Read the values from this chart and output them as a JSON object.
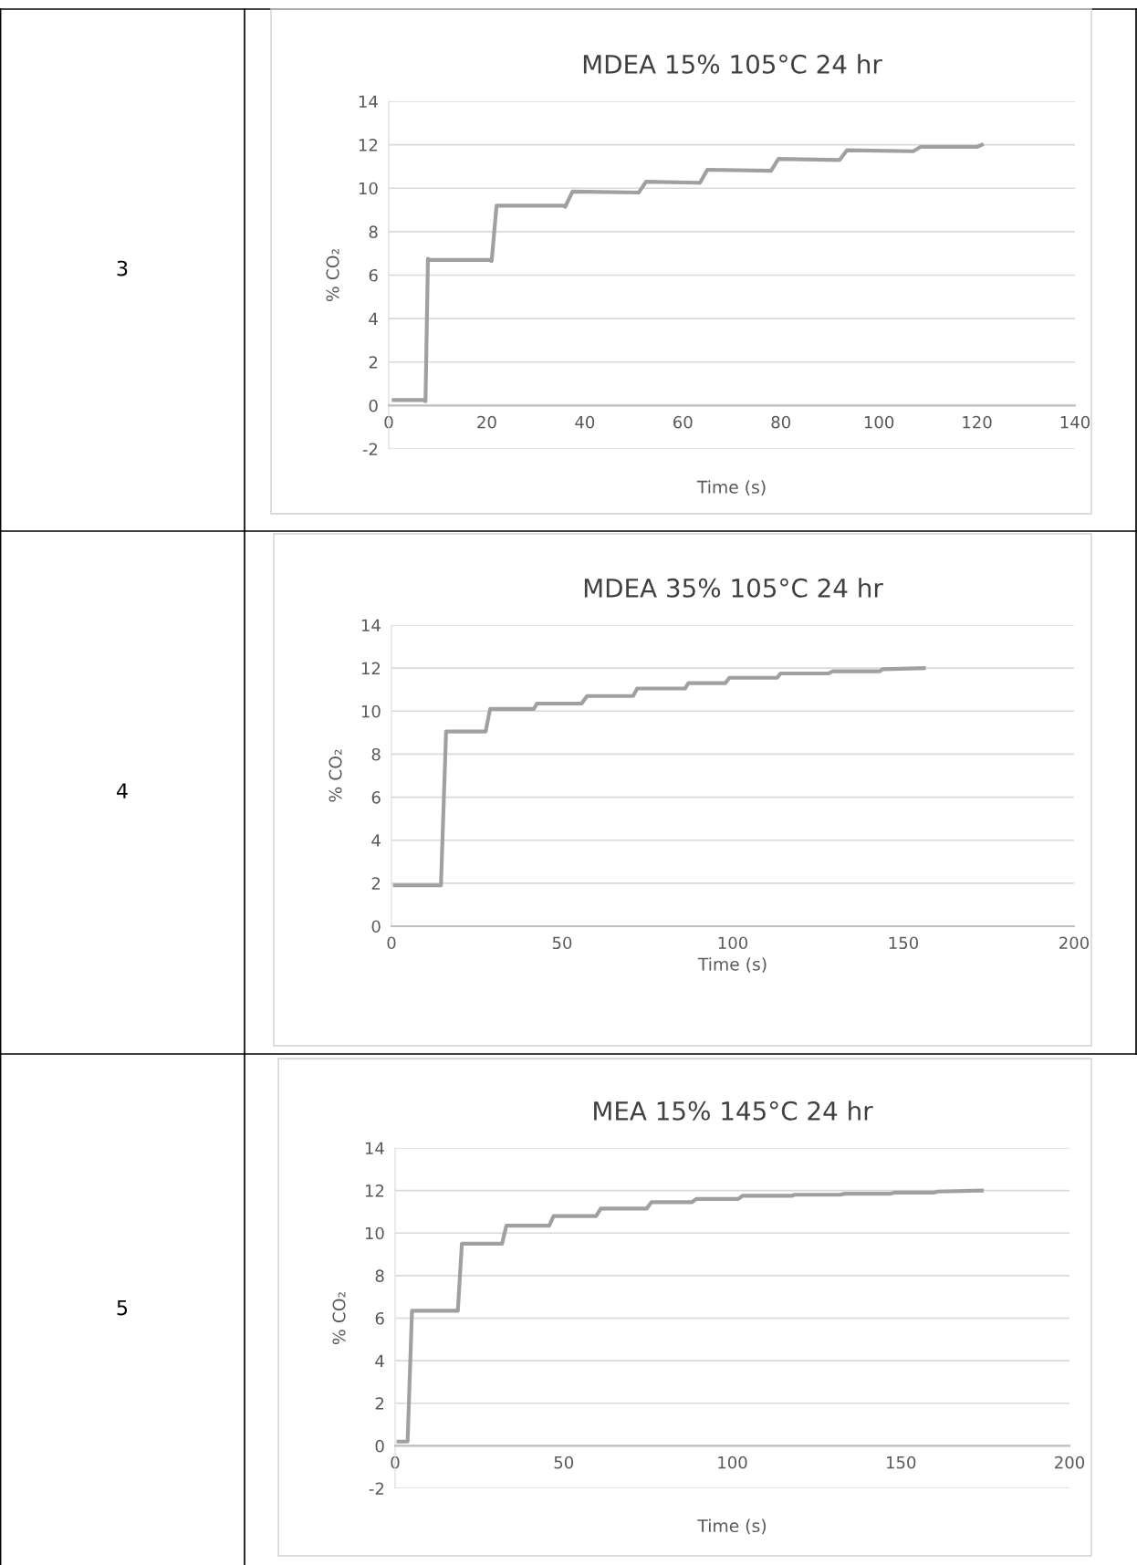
{
  "chart_data": [
    {
      "type": "line",
      "title": "MDEA 15% 105°C 24 hr",
      "xlabel": "Time (s)",
      "ylabel": "% CO₂",
      "annotations": [
        "3"
      ],
      "grid": "y",
      "xlim": [
        0,
        140
      ],
      "ylim": [
        -2,
        14
      ],
      "xticks": [
        0,
        20,
        40,
        60,
        80,
        100,
        120,
        140
      ],
      "yticks": [
        -2,
        0,
        2,
        4,
        6,
        8,
        10,
        12,
        14
      ],
      "series": [
        {
          "color": "#a0a0a0",
          "x": [
            1,
            7,
            7.5,
            8,
            8.5,
            20.5,
            21,
            22,
            35.5,
            36,
            37.5,
            51,
            52.5,
            63.5,
            65,
            78,
            79.5,
            92,
            93.5,
            107,
            108.5,
            120,
            121
          ],
          "values": [
            0.25,
            0.25,
            0.2,
            6.75,
            6.7,
            6.7,
            6.65,
            9.2,
            9.2,
            9.15,
            9.85,
            9.8,
            10.3,
            10.25,
            10.85,
            10.8,
            11.35,
            11.3,
            11.75,
            11.7,
            11.9,
            11.9,
            12
          ]
        }
      ]
    },
    {
      "type": "line",
      "title": "MDEA 35% 105°C 24 hr",
      "xlabel": "Time (s)",
      "ylabel": "% CO₂",
      "annotations": [
        "4"
      ],
      "grid": "y",
      "xlim": [
        0,
        200
      ],
      "ylim": [
        0,
        14
      ],
      "xticks": [
        0,
        50,
        100,
        150,
        200
      ],
      "yticks": [
        0,
        2,
        4,
        6,
        8,
        10,
        12,
        14
      ],
      "series": [
        {
          "color": "#a0a0a0",
          "x": [
            1,
            14.5,
            16,
            27.6,
            28.9,
            41.7,
            42.6,
            55.7,
            57.3,
            70.8,
            72,
            86,
            87,
            97.8,
            99,
            113,
            114,
            128,
            129.3,
            143,
            144,
            156
          ],
          "values": [
            1.9,
            1.9,
            9.05,
            9.05,
            10.1,
            10.1,
            10.35,
            10.35,
            10.7,
            10.7,
            11.05,
            11.05,
            11.3,
            11.3,
            11.55,
            11.55,
            11.75,
            11.75,
            11.85,
            11.85,
            11.95,
            12
          ]
        }
      ]
    },
    {
      "type": "line",
      "title": "MEA 15% 145°C 24 hr",
      "xlabel": "Time (s)",
      "ylabel": "% CO₂",
      "annotations": [
        "5"
      ],
      "grid": "y",
      "xlim": [
        0,
        200
      ],
      "ylim": [
        -2,
        14
      ],
      "xticks": [
        0,
        50,
        100,
        150,
        200
      ],
      "yticks": [
        -2,
        0,
        2,
        4,
        6,
        8,
        10,
        12,
        14
      ],
      "series": [
        {
          "color": "#a0a0a0",
          "x": [
            1,
            3.7,
            5,
            18.6,
            19.8,
            31.7,
            33,
            45.7,
            47,
            59.6,
            61,
            74.6,
            76,
            88,
            89.3,
            101.8,
            103,
            117.6,
            118.5,
            132,
            133.3,
            147,
            148,
            159.7,
            161,
            174
          ],
          "values": [
            0.2,
            0.2,
            6.35,
            6.35,
            9.5,
            9.5,
            10.35,
            10.35,
            10.8,
            10.8,
            11.15,
            11.15,
            11.45,
            11.45,
            11.6,
            11.6,
            11.75,
            11.75,
            11.8,
            11.8,
            11.85,
            11.85,
            11.9,
            11.9,
            11.95,
            12
          ]
        }
      ]
    }
  ]
}
